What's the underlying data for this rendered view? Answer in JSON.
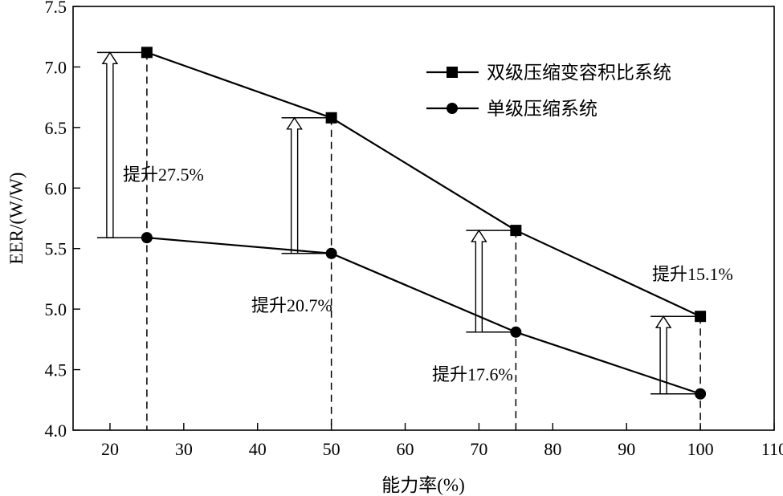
{
  "chart_data": {
    "type": "line",
    "xlabel": "能力率(%)",
    "ylabel": "EER/(W/W)",
    "xlim": [
      15,
      110
    ],
    "ylim": [
      4.0,
      7.5
    ],
    "xticks": [
      20,
      30,
      40,
      50,
      60,
      70,
      80,
      90,
      100,
      110
    ],
    "yticks": [
      4.0,
      4.5,
      5.0,
      5.5,
      6.0,
      6.5,
      7.0,
      7.5
    ],
    "grid": false,
    "legend_position": "top-right",
    "x": [
      25,
      50,
      75,
      100
    ],
    "series": [
      {
        "name": "双级压缩变容积比系统",
        "marker": "square",
        "values": [
          7.12,
          6.58,
          5.65,
          4.94
        ]
      },
      {
        "name": "单级压缩系统",
        "marker": "circle",
        "values": [
          5.59,
          5.46,
          4.81,
          4.3
        ]
      }
    ],
    "annotations": [
      {
        "x": 25,
        "text": "提升27.5%"
      },
      {
        "x": 50,
        "text": "提升20.7%"
      },
      {
        "x": 75,
        "text": "提升17.6%"
      },
      {
        "x": 100,
        "text": "提升15.1%"
      }
    ]
  },
  "colors": {
    "line": "#000000",
    "background": "#ffffff",
    "arrow_fill": "#ffffff"
  }
}
